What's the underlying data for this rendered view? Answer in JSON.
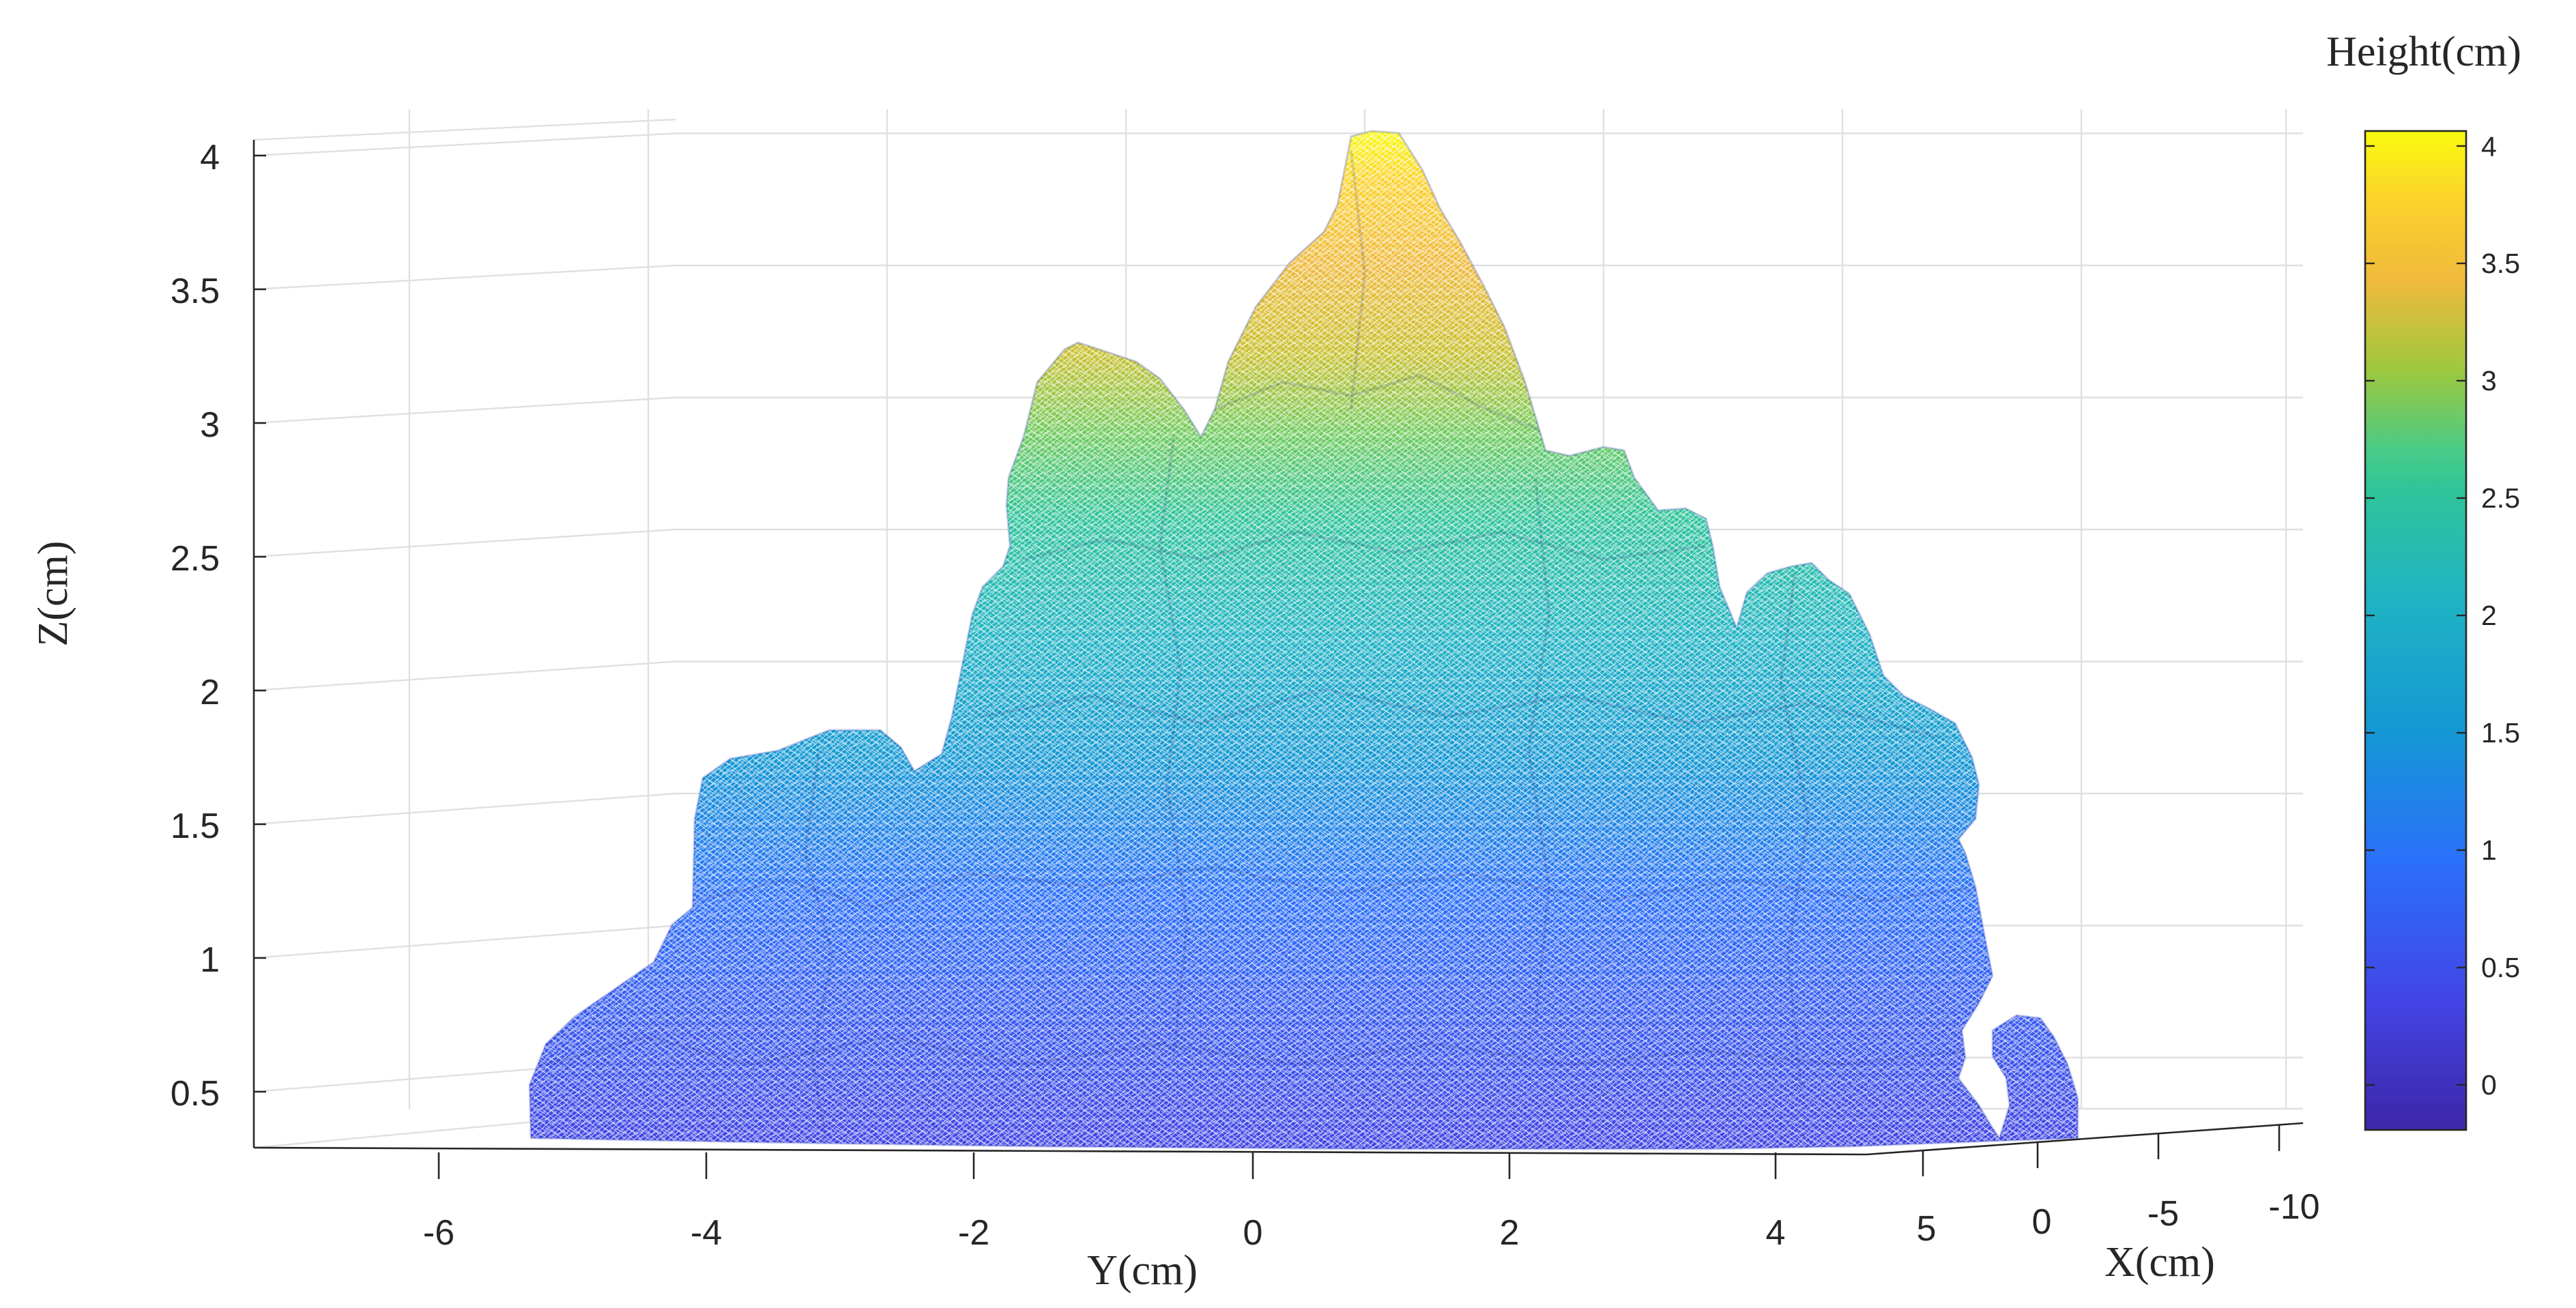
{
  "chart_data": {
    "type": "surface",
    "xlabel": "Y(cm)",
    "ylabel": "X(cm)",
    "zlabel": "Z(cm)",
    "colorbar_label": "Height(cm)",
    "y_ticks": [
      "-6",
      "-4",
      "-2",
      "0",
      "2",
      "4"
    ],
    "x_ticks": [
      "5",
      "0",
      "-5",
      "-10"
    ],
    "z_ticks": [
      "0.5",
      "1",
      "1.5",
      "2",
      "2.5",
      "3",
      "3.5",
      "4"
    ],
    "colorbar_ticks": [
      "0",
      "0.5",
      "1",
      "1.5",
      "2",
      "2.5",
      "3",
      "3.5",
      "4"
    ],
    "ylim": [
      -7.3,
      7.4
    ],
    "zlim": [
      0.3,
      4.05
    ],
    "colorbar_range": [
      -0.2,
      4.05
    ],
    "colormap": "parula",
    "grid": true,
    "colors": {
      "low": "#3e26a8",
      "mid": "#17beb9",
      "high": "#f9fb0e"
    }
  }
}
